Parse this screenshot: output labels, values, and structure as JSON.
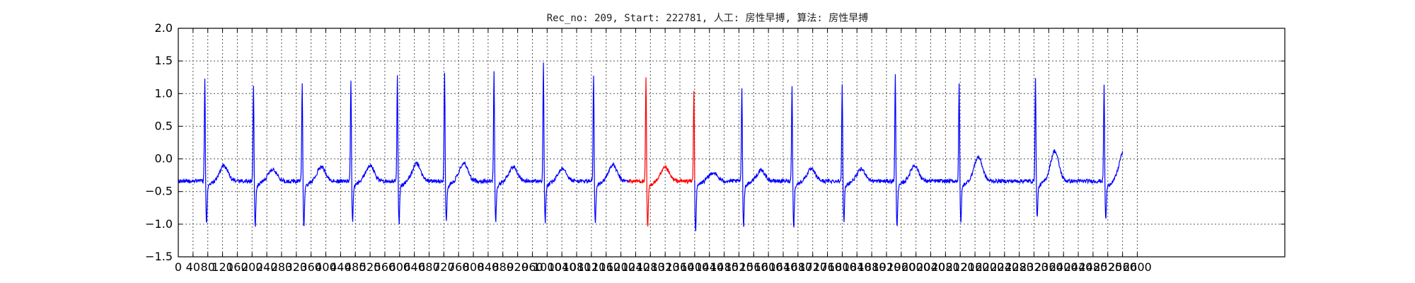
{
  "chart_data": {
    "type": "line",
    "title": "Rec_no: 209, Start: 222781, 人工: 房性早搏, 算法: 房性早搏",
    "xlabel": "",
    "ylabel": "",
    "xlim": [
      0,
      3000
    ],
    "ylim": [
      -1.5,
      2.0
    ],
    "grid": true,
    "yticks": [
      -1.5,
      -1.0,
      -0.5,
      0.0,
      0.5,
      1.0,
      1.5,
      2.0
    ],
    "yticklabels": [
      "−1.5",
      "−1.0",
      "−0.5",
      "0.0",
      "0.5",
      "1.0",
      "1.5",
      "2.0"
    ],
    "xticks": [
      0,
      40,
      80,
      120,
      160,
      200,
      240,
      280,
      320,
      360,
      400,
      440,
      480,
      520,
      560,
      600,
      640,
      680,
      720,
      760,
      800,
      840,
      880,
      920,
      960,
      1000,
      1040,
      1080,
      1120,
      1160,
      1200,
      1240,
      1280,
      1320,
      1360,
      1400,
      1440,
      1480,
      1520,
      1560,
      1600,
      1640,
      1680,
      1720,
      1760,
      1800,
      1840,
      1880,
      1920,
      1960,
      2000,
      2040,
      2080,
      2120,
      2160,
      2200,
      2240,
      2280,
      2320,
      2360,
      2400,
      2440,
      2480,
      2520,
      2560,
      2600
    ],
    "xticklabels": [
      "0",
      "40",
      "80",
      "120",
      "160",
      "200",
      "240",
      "280",
      "320",
      "360",
      "400",
      "440",
      "480",
      "520",
      "560",
      "600",
      "640",
      "680",
      "720",
      "760",
      "800",
      "840",
      "880",
      "920",
      "960",
      "1000",
      "1040",
      "1080",
      "1120",
      "1160",
      "1200",
      "1240",
      "1280",
      "1320",
      "1360",
      "1400",
      "1440",
      "1480",
      "1520",
      "1560",
      "1600",
      "1640",
      "1680",
      "1720",
      "1760",
      "1800",
      "1840",
      "1880",
      "1920",
      "1960",
      "2000",
      "2040",
      "2080",
      "2120",
      "2160",
      "2200",
      "2240",
      "2280",
      "2320",
      "2360",
      "2400",
      "2440",
      "2480",
      "2520",
      "2560",
      "2600"
    ],
    "signal_end": 2560,
    "colors": {
      "normal": "#0000ff",
      "highlight": "#ff0000"
    },
    "beats": [
      {
        "x": 72,
        "r": 1.28,
        "s": -0.9,
        "t": -0.07,
        "highlight": false
      },
      {
        "x": 204,
        "r": 1.2,
        "s": -0.98,
        "t": -0.12,
        "highlight": false
      },
      {
        "x": 336,
        "r": 1.2,
        "s": -0.97,
        "t": -0.08,
        "highlight": false
      },
      {
        "x": 468,
        "r": 1.26,
        "s": -0.86,
        "t": -0.06,
        "highlight": false
      },
      {
        "x": 594,
        "r": 1.31,
        "s": -0.9,
        "t": -0.03,
        "highlight": false
      },
      {
        "x": 722,
        "r": 1.39,
        "s": -0.88,
        "t": -0.02,
        "highlight": false
      },
      {
        "x": 856,
        "r": 1.42,
        "s": -0.86,
        "t": -0.08,
        "highlight": false
      },
      {
        "x": 990,
        "r": 1.5,
        "s": -0.87,
        "t": -0.1,
        "highlight": false
      },
      {
        "x": 1126,
        "r": 1.32,
        "s": -0.91,
        "t": -0.05,
        "highlight": false
      },
      {
        "x": 1268,
        "r": 1.3,
        "s": -0.96,
        "t": -0.1,
        "highlight": true
      },
      {
        "x": 1398,
        "r": 1.09,
        "s": -1.04,
        "t": -0.17,
        "highlight": true
      },
      {
        "x": 1528,
        "r": 1.15,
        "s": -0.93,
        "t": -0.14,
        "highlight": false
      },
      {
        "x": 1664,
        "r": 1.18,
        "s": -0.95,
        "t": -0.12,
        "highlight": false
      },
      {
        "x": 1800,
        "r": 1.22,
        "s": -0.88,
        "t": -0.12,
        "highlight": false
      },
      {
        "x": 1944,
        "r": 1.34,
        "s": -0.96,
        "t": -0.06,
        "highlight": false
      },
      {
        "x": 2117,
        "r": 1.2,
        "s": -0.88,
        "t": 0.07,
        "highlight": false
      },
      {
        "x": 2324,
        "r": 1.28,
        "s": -0.8,
        "t": 0.16,
        "highlight": false
      },
      {
        "x": 2510,
        "r": 1.18,
        "s": -0.84,
        "t": 0.14,
        "highlight": false
      }
    ]
  }
}
